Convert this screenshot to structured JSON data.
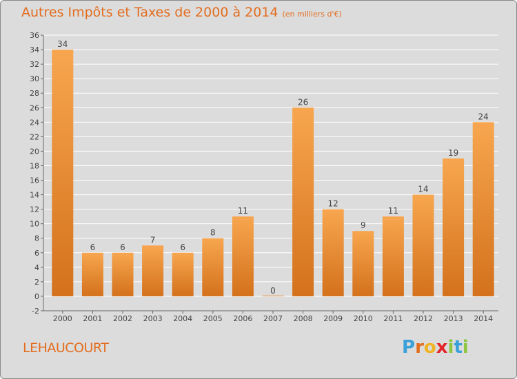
{
  "title": "Autres Impôts et Taxes de 2000 à 2014",
  "unit_note": "(en milliers d'€)",
  "commune": "LEHAUCOURT",
  "logo": {
    "letters": [
      "P",
      "r",
      "o",
      "x",
      "i",
      "t",
      "i"
    ],
    "colors": [
      "#3aa0d8",
      "#e36d1f",
      "#f0b323",
      "#e2262a",
      "#8cc63f",
      "#3aa0d8",
      "#8cc63f"
    ]
  },
  "colors": {
    "bar_light": "#f7a64f",
    "bar_dark": "#d4711c",
    "accent": "#e36d1f",
    "grid": "#ffffff",
    "background": "#dcdcdc"
  },
  "chart_data": {
    "type": "bar",
    "categories": [
      "2000",
      "2001",
      "2002",
      "2003",
      "2004",
      "2005",
      "2006",
      "2007",
      "2008",
      "2009",
      "2010",
      "2011",
      "2012",
      "2013",
      "2014"
    ],
    "values": [
      34,
      6,
      6,
      7,
      6,
      8,
      11,
      0,
      26,
      12,
      9,
      11,
      14,
      19,
      24
    ],
    "data_labels": [
      "34",
      "6",
      "6",
      "7",
      "6",
      "8",
      "11",
      "0",
      "26",
      "12",
      "9",
      "11",
      "14",
      "19",
      "24"
    ],
    "y_ticks": [
      -2,
      0,
      2,
      4,
      6,
      8,
      10,
      12,
      14,
      16,
      18,
      20,
      22,
      24,
      26,
      28,
      30,
      32,
      34,
      36
    ],
    "ylim": [
      -2,
      36
    ],
    "grid": true,
    "legend": "none",
    "xlabel": "",
    "ylabel": ""
  }
}
